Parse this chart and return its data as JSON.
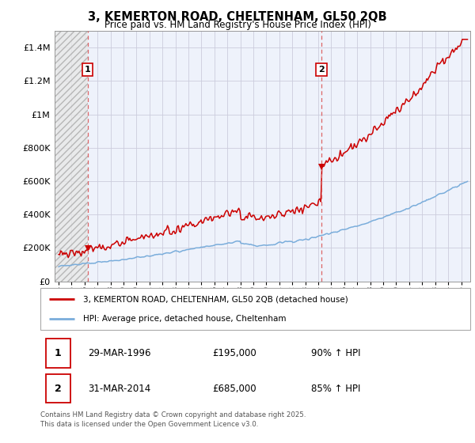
{
  "title": "3, KEMERTON ROAD, CHELTENHAM, GL50 2QB",
  "subtitle": "Price paid vs. HM Land Registry's House Price Index (HPI)",
  "sale1_date": "29-MAR-1996",
  "sale1_price": 195000,
  "sale1_hpi": "90% ↑ HPI",
  "sale1_year": 1996.25,
  "sale2_date": "31-MAR-2014",
  "sale2_price": 685000,
  "sale2_hpi": "85% ↑ HPI",
  "sale2_year": 2014.25,
  "red_line_color": "#cc0000",
  "blue_line_color": "#7aaddb",
  "dashed_line_color": "#dd6666",
  "background_color": "#eef2fb",
  "grid_color": "#ccccdd",
  "annotation_box_color": "#cc0000",
  "ylim_max": 1500000,
  "footer": "Contains HM Land Registry data © Crown copyright and database right 2025.\nThis data is licensed under the Open Government Licence v3.0.",
  "legend_line1": "3, KEMERTON ROAD, CHELTENHAM, GL50 2QB (detached house)",
  "legend_line2": "HPI: Average price, detached house, Cheltenham"
}
